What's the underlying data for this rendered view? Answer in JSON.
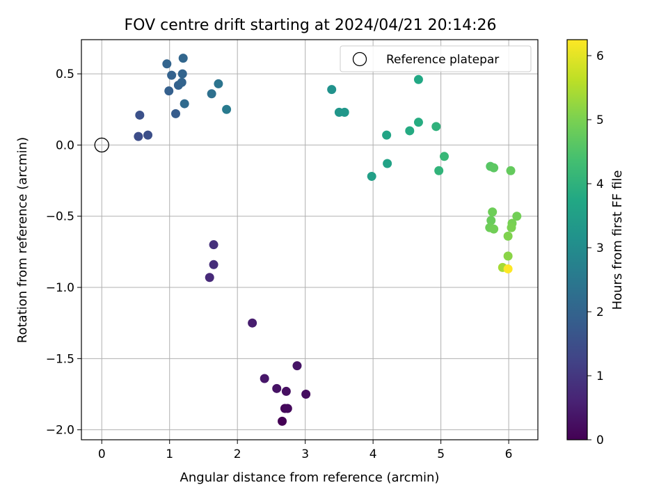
{
  "chart_data": {
    "type": "scatter",
    "title": "FOV centre drift starting at 2024/04/21 20:14:26",
    "xlabel": "Angular distance from reference (arcmin)",
    "ylabel": "Rotation from reference (arcmin)",
    "xlim": [
      -0.3,
      6.43
    ],
    "ylim": [
      -2.07,
      0.74
    ],
    "xticks": [
      0,
      1,
      2,
      3,
      4,
      5,
      6
    ],
    "xtick_labels": [
      "0",
      "1",
      "2",
      "3",
      "4",
      "5",
      "6"
    ],
    "yticks": [
      0.5,
      0.0,
      -0.5,
      -1.0,
      -1.5,
      -2.0
    ],
    "ytick_labels": [
      "0.5",
      "0.0",
      "−0.5",
      "−1.0",
      "−1.5",
      "−2.0"
    ],
    "grid": true,
    "legend": {
      "placement": "top-right",
      "entries": [
        "Reference platepar"
      ]
    },
    "reference_point": {
      "label": "Reference platepar",
      "x": 0.0,
      "y": 0.0
    },
    "colorbar": {
      "label": "Hours from first FF file",
      "range": [
        0,
        6.25
      ],
      "ticks": [
        0,
        1,
        2,
        3,
        4,
        5,
        6
      ],
      "tick_labels": [
        "0",
        "1",
        "2",
        "3",
        "4",
        "5",
        "6"
      ],
      "colormap": "viridis"
    },
    "series": [
      {
        "points": [
          {
            "x": 2.66,
            "y": -1.94,
            "c": 0.0
          },
          {
            "x": 2.7,
            "y": -1.85,
            "c": 0.1
          },
          {
            "x": 2.74,
            "y": -1.85,
            "c": 0.15
          },
          {
            "x": 3.01,
            "y": -1.75,
            "c": 0.2
          },
          {
            "x": 2.72,
            "y": -1.73,
            "c": 0.25
          },
          {
            "x": 2.58,
            "y": -1.71,
            "c": 0.3
          },
          {
            "x": 2.88,
            "y": -1.55,
            "c": 0.35
          },
          {
            "x": 2.4,
            "y": -1.64,
            "c": 0.4
          },
          {
            "x": 2.22,
            "y": -1.25,
            "c": 0.5
          },
          {
            "x": 1.59,
            "y": -0.93,
            "c": 0.75
          },
          {
            "x": 1.65,
            "y": -0.84,
            "c": 0.8
          },
          {
            "x": 1.65,
            "y": -0.7,
            "c": 0.85
          },
          {
            "x": 0.54,
            "y": 0.06,
            "c": 1.45
          },
          {
            "x": 0.68,
            "y": 0.07,
            "c": 1.5
          },
          {
            "x": 0.56,
            "y": 0.21,
            "c": 1.55
          },
          {
            "x": 1.09,
            "y": 0.22,
            "c": 1.8
          },
          {
            "x": 0.99,
            "y": 0.38,
            "c": 1.9
          },
          {
            "x": 1.13,
            "y": 0.42,
            "c": 1.95
          },
          {
            "x": 1.18,
            "y": 0.44,
            "c": 2.0
          },
          {
            "x": 1.03,
            "y": 0.49,
            "c": 1.95
          },
          {
            "x": 1.19,
            "y": 0.5,
            "c": 2.0
          },
          {
            "x": 0.96,
            "y": 0.57,
            "c": 2.0
          },
          {
            "x": 1.2,
            "y": 0.61,
            "c": 2.05
          },
          {
            "x": 1.22,
            "y": 0.29,
            "c": 2.15
          },
          {
            "x": 1.62,
            "y": 0.36,
            "c": 2.3
          },
          {
            "x": 1.72,
            "y": 0.43,
            "c": 2.4
          },
          {
            "x": 1.84,
            "y": 0.25,
            "c": 2.55
          },
          {
            "x": 3.39,
            "y": 0.39,
            "c": 3.15
          },
          {
            "x": 3.5,
            "y": 0.23,
            "c": 3.25
          },
          {
            "x": 3.58,
            "y": 0.23,
            "c": 3.3
          },
          {
            "x": 3.98,
            "y": -0.22,
            "c": 3.5
          },
          {
            "x": 4.21,
            "y": -0.13,
            "c": 3.6
          },
          {
            "x": 4.2,
            "y": 0.07,
            "c": 3.65
          },
          {
            "x": 4.54,
            "y": 0.1,
            "c": 3.8
          },
          {
            "x": 4.67,
            "y": 0.16,
            "c": 3.85
          },
          {
            "x": 4.67,
            "y": 0.46,
            "c": 3.75
          },
          {
            "x": 4.93,
            "y": 0.13,
            "c": 4.0
          },
          {
            "x": 4.97,
            "y": -0.18,
            "c": 4.05
          },
          {
            "x": 5.05,
            "y": -0.08,
            "c": 4.15
          },
          {
            "x": 5.73,
            "y": -0.15,
            "c": 4.6
          },
          {
            "x": 5.78,
            "y": -0.16,
            "c": 4.65
          },
          {
            "x": 6.03,
            "y": -0.18,
            "c": 4.75
          },
          {
            "x": 5.76,
            "y": -0.47,
            "c": 4.85
          },
          {
            "x": 5.74,
            "y": -0.53,
            "c": 4.8
          },
          {
            "x": 6.12,
            "y": -0.5,
            "c": 4.9
          },
          {
            "x": 6.05,
            "y": -0.55,
            "c": 4.95
          },
          {
            "x": 6.04,
            "y": -0.58,
            "c": 5.0
          },
          {
            "x": 5.72,
            "y": -0.58,
            "c": 4.85
          },
          {
            "x": 5.78,
            "y": -0.59,
            "c": 4.9
          },
          {
            "x": 5.99,
            "y": -0.64,
            "c": 5.05
          },
          {
            "x": 5.99,
            "y": -0.78,
            "c": 5.15
          },
          {
            "x": 5.91,
            "y": -0.86,
            "c": 5.4
          },
          {
            "x": 5.99,
            "y": -0.87,
            "c": 6.25
          }
        ]
      }
    ]
  }
}
